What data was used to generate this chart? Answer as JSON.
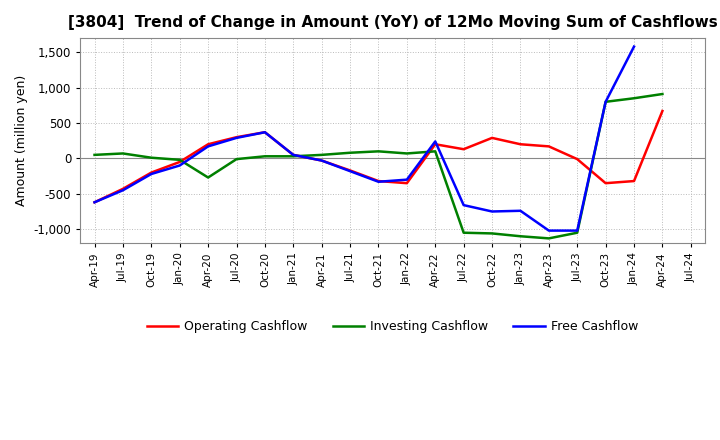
{
  "title": "[3804]  Trend of Change in Amount (YoY) of 12Mo Moving Sum of Cashflows",
  "ylabel": "Amount (million yen)",
  "xlabels": [
    "Apr-19",
    "Jul-19",
    "Oct-19",
    "Jan-20",
    "Apr-20",
    "Jul-20",
    "Oct-20",
    "Jan-21",
    "Apr-21",
    "Jul-21",
    "Oct-21",
    "Jan-22",
    "Apr-22",
    "Jul-22",
    "Oct-22",
    "Jan-23",
    "Apr-23",
    "Jul-23",
    "Oct-23",
    "Jan-24",
    "Apr-24",
    "Jul-24"
  ],
  "operating": [
    -620,
    -430,
    -200,
    -50,
    200,
    300,
    370,
    50,
    -30,
    -170,
    -320,
    -350,
    200,
    130,
    290,
    200,
    170,
    -10,
    -350,
    -320,
    670,
    null
  ],
  "investing": [
    50,
    70,
    10,
    -20,
    -270,
    -10,
    30,
    30,
    50,
    80,
    100,
    70,
    100,
    -1050,
    -1060,
    -1100,
    -1130,
    -1050,
    800,
    850,
    910,
    null
  ],
  "free": [
    -620,
    -450,
    -220,
    -100,
    170,
    290,
    370,
    50,
    -30,
    -180,
    -330,
    -300,
    240,
    -660,
    -750,
    -740,
    -1020,
    -1020,
    800,
    1580,
    null,
    null
  ],
  "operating_color": "#ff0000",
  "investing_color": "#008000",
  "free_color": "#0000ff",
  "ylim": [
    -1200,
    1700
  ],
  "yticks": [
    -1000,
    -500,
    0,
    500,
    1000,
    1500
  ],
  "background_color": "#ffffff",
  "grid_color": "#bbbbbb"
}
